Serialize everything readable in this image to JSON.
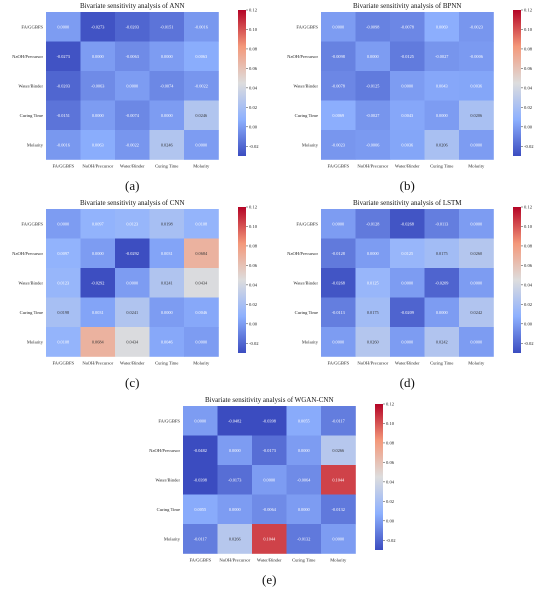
{
  "panel_labels": [
    "(a)",
    "(b)",
    "(c)",
    "(d)",
    "(e)"
  ],
  "chart_data": [
    {
      "type": "heatmap",
      "title": "Bivariate sensitivity analysis of ANN",
      "x_labels": [
        "FA/GGBFS",
        "NaOH/Precursor",
        "Water/Binder",
        "Curing Time",
        "Molarity"
      ],
      "y_labels": [
        "FA/GGBFS",
        "NaOH/Precursor",
        "Water/Binder",
        "Curing Time",
        "Molarity"
      ],
      "values": [
        [
          0.0,
          -0.0273,
          -0.0203,
          -0.0151,
          -0.0016
        ],
        [
          -0.0273,
          0.0,
          -0.0063,
          0.0,
          0.0063
        ],
        [
          -0.0203,
          -0.0063,
          0.0,
          -0.0074,
          -0.0022
        ],
        [
          -0.0151,
          0.0,
          -0.0074,
          0.0,
          0.0246
        ],
        [
          -0.0016,
          0.0063,
          -0.0022,
          0.0246,
          0.0
        ]
      ],
      "colorbar": {
        "vmin": -0.03,
        "vmax": 0.12,
        "ticks": [
          "0.12",
          "0.10",
          "0.08",
          "0.06",
          "0.04",
          "0.02",
          "0.00",
          "-0.02"
        ]
      }
    },
    {
      "type": "heatmap",
      "title": "Bivariate sensitivity analysis of BPNN",
      "x_labels": [
        "FA/GGBFS",
        "NaOH/Precursor",
        "Water/Binder",
        "Curing Time",
        "Molarity"
      ],
      "y_labels": [
        "FA/GGBFS",
        "NaOH/Precursor",
        "Water/Binder",
        "Curing Time",
        "Molarity"
      ],
      "values": [
        [
          0.0,
          -0.0098,
          -0.0078,
          0.0069,
          -0.0023
        ],
        [
          -0.0098,
          0.0,
          -0.0125,
          -0.0027,
          -0.0006
        ],
        [
          -0.0078,
          -0.0125,
          0.0,
          0.0043,
          0.0036
        ],
        [
          0.0069,
          -0.0027,
          0.0043,
          0.0,
          0.0206
        ],
        [
          -0.0023,
          -0.0006,
          0.0036,
          0.0206,
          0.0
        ]
      ],
      "colorbar": {
        "vmin": -0.03,
        "vmax": 0.12,
        "ticks": [
          "0.12",
          "0.10",
          "0.08",
          "0.06",
          "0.04",
          "0.02",
          "0.00",
          "-0.02"
        ]
      }
    },
    {
      "type": "heatmap",
      "title": "Bivariate sensitivity analysis of CNN",
      "x_labels": [
        "FA/GGBFS",
        "NaOH/Precursor",
        "Water/Binder",
        "Curing Time",
        "Molarity"
      ],
      "y_labels": [
        "FA/GGBFS",
        "NaOH/Precursor",
        "Water/Binder",
        "Curing Time",
        "Molarity"
      ],
      "values": [
        [
          0.0,
          0.0097,
          0.0123,
          0.0198,
          0.0108
        ],
        [
          0.0097,
          0.0,
          -0.0292,
          0.0031,
          0.0684
        ],
        [
          0.0123,
          -0.0292,
          0.0,
          0.0241,
          0.0434
        ],
        [
          0.0198,
          0.0031,
          0.0241,
          0.0,
          0.0046
        ],
        [
          0.0108,
          0.0684,
          0.0434,
          0.0046,
          0.0
        ]
      ],
      "colorbar": {
        "vmin": -0.03,
        "vmax": 0.12,
        "ticks": [
          "0.12",
          "0.10",
          "0.08",
          "0.06",
          "0.04",
          "0.02",
          "0.00",
          "-0.02"
        ]
      }
    },
    {
      "type": "heatmap",
      "title": "Bivariate sensitivity analysis of LSTM",
      "x_labels": [
        "FA/GGBFS",
        "NaOH/Precursor",
        "Water/Binder",
        "Curing Time",
        "Molarity"
      ],
      "y_labels": [
        "FA/GGBFS",
        "NaOH/Precursor",
        "Water/Binder",
        "Curing Time",
        "Molarity"
      ],
      "values": [
        [
          0.0,
          -0.0128,
          -0.0268,
          -0.0113,
          0.0
        ],
        [
          -0.0128,
          0.0,
          0.0125,
          0.0175,
          0.026
        ],
        [
          -0.0268,
          0.0125,
          0.0,
          -0.0209,
          -0.0
        ],
        [
          -0.0113,
          0.0175,
          -0.0209,
          0.0,
          0.0242
        ],
        [
          0.0,
          0.026,
          -0.0,
          0.0242,
          0.0
        ]
      ],
      "colorbar": {
        "vmin": -0.03,
        "vmax": 0.12,
        "ticks": [
          "0.12",
          "0.10",
          "0.08",
          "0.06",
          "0.04",
          "0.02",
          "0.00",
          "-0.02"
        ]
      }
    },
    {
      "type": "heatmap",
      "title": "Bivariate sensitivity analysis of WGAN-CNN",
      "x_labels": [
        "FA/GGBFS",
        "NaOH/Precursor",
        "Water/Binder",
        "Curing Time",
        "Molarity"
      ],
      "y_labels": [
        "FA/GGBFS",
        "NaOH/Precursor",
        "Water/Binder",
        "Curing Time",
        "Molarity"
      ],
      "values": [
        [
          0.0,
          -0.0482,
          -0.0398,
          0.0055,
          -0.0117
        ],
        [
          -0.0482,
          0.0,
          -0.0173,
          0.0,
          0.0266
        ],
        [
          -0.0398,
          -0.0173,
          0.0,
          -0.0064,
          0.1044
        ],
        [
          0.0055,
          0.0,
          -0.0064,
          0.0,
          -0.0132
        ],
        [
          -0.0117,
          0.0266,
          0.1044,
          -0.0132,
          0.0
        ]
      ],
      "colorbar": {
        "vmin": -0.03,
        "vmax": 0.12,
        "ticks": [
          "0.12",
          "0.10",
          "0.08",
          "0.06",
          "0.04",
          "0.02",
          "0.00",
          "-0.02"
        ]
      }
    }
  ]
}
